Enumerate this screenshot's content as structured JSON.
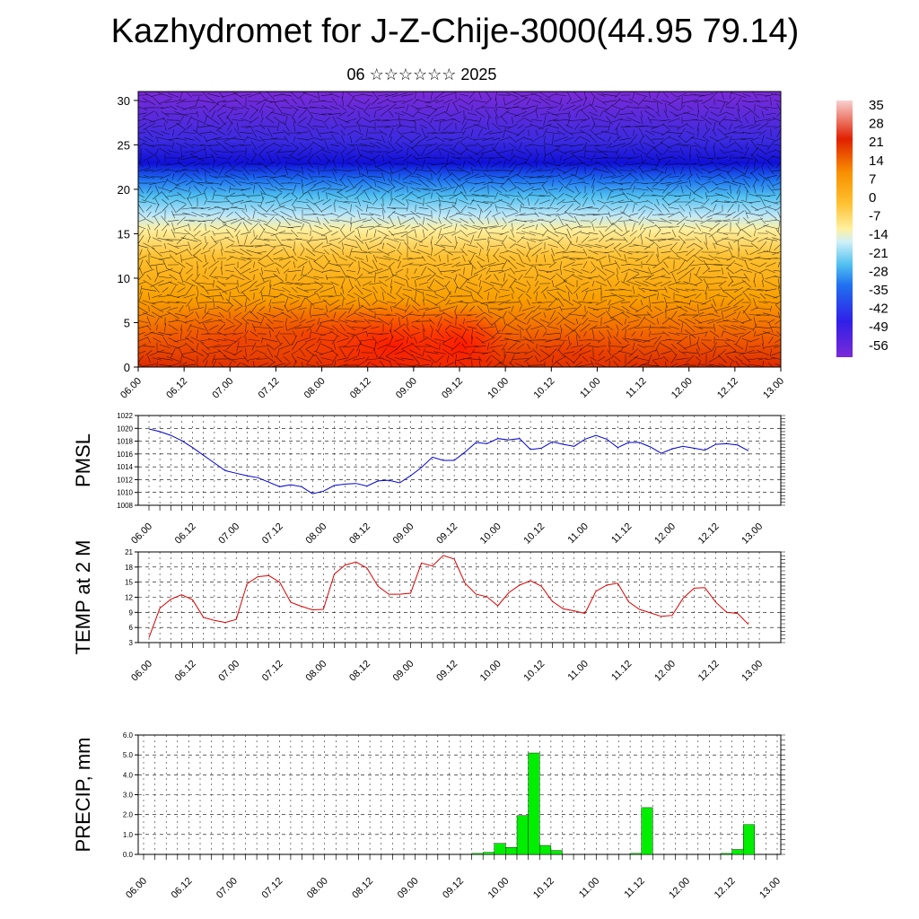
{
  "title": "Kazhydromet for J-Z-Chije-3000(44.95 79.14)",
  "subtitle": "06 ☆☆☆☆☆☆ 2025",
  "time_labels": [
    "06.00",
    "06.12",
    "07.00",
    "07.12",
    "08.00",
    "08.12",
    "09.00",
    "09.12",
    "10.00",
    "10.12",
    "11.00",
    "11.12",
    "12.00",
    "12.12",
    "13.00"
  ],
  "colors": {
    "pmsl_line": "#0000cc",
    "temp_line": "#dd0000",
    "precip_bar": "#00ee00"
  },
  "chart_data": [
    {
      "type": "heatmap",
      "name": "temperature-wind-cross-section",
      "title": "",
      "xlabel": "",
      "ylabel": "",
      "y_ticks": [
        "0",
        "5",
        "10",
        "15",
        "20",
        "25",
        "30"
      ],
      "ylim": [
        0,
        31
      ],
      "colorbar_labels": [
        "35",
        "28",
        "21",
        "14",
        "7",
        "0",
        "-7",
        "-14",
        "-21",
        "-28",
        "-35",
        "-42",
        "-49",
        "-56"
      ],
      "colorbar_range": [
        -60,
        38
      ],
      "overlay": "wind barbs"
    },
    {
      "type": "line",
      "name": "pmsl",
      "ylabel": "PMSL",
      "ylim": [
        1008,
        1022
      ],
      "y_ticks": [
        "1008",
        "1010",
        "1012",
        "1014",
        "1016",
        "1018",
        "1020",
        "1022"
      ],
      "x_hours": [
        0,
        3,
        6,
        9,
        12,
        15,
        18,
        21,
        24,
        27,
        30,
        33,
        36,
        39,
        42,
        45,
        48,
        51,
        54,
        57,
        60,
        63,
        66,
        69,
        72,
        75,
        78,
        81,
        84,
        87,
        90,
        93,
        96,
        99,
        102,
        105,
        108,
        111,
        114,
        117,
        120,
        123,
        126,
        129,
        132,
        135,
        138,
        141,
        144,
        147,
        150,
        153,
        156,
        159,
        162,
        165
      ],
      "values": [
        1019.9,
        1019.5,
        1018.9,
        1018.1,
        1017.0,
        1015.8,
        1014.6,
        1013.4,
        1013.0,
        1012.6,
        1012.3,
        1011.6,
        1010.9,
        1011.2,
        1010.9,
        1009.8,
        1010.2,
        1011.1,
        1011.3,
        1011.4,
        1011.0,
        1011.8,
        1011.9,
        1011.5,
        1012.6,
        1013.9,
        1015.5,
        1015.0,
        1015.0,
        1016.3,
        1017.8,
        1017.6,
        1018.4,
        1018.2,
        1018.4,
        1016.7,
        1016.9,
        1017.9,
        1017.5,
        1017.2,
        1018.3,
        1018.9,
        1018.3,
        1017.0,
        1017.8,
        1017.8,
        1017.1,
        1016.1,
        1016.8,
        1017.2,
        1016.9,
        1016.6,
        1017.5,
        1017.6,
        1017.4,
        1016.5
      ]
    },
    {
      "type": "line",
      "name": "temp-2m",
      "ylabel": "TEMP at 2 M",
      "ylim": [
        3,
        21
      ],
      "y_ticks": [
        "3",
        "6",
        "9",
        "12",
        "15",
        "18",
        "21"
      ],
      "x_hours": [
        0,
        3,
        6,
        9,
        12,
        15,
        18,
        21,
        24,
        27,
        30,
        33,
        36,
        39,
        42,
        45,
        48,
        51,
        54,
        57,
        60,
        63,
        66,
        69,
        72,
        75,
        78,
        81,
        84,
        87,
        90,
        93,
        96,
        99,
        102,
        105,
        108,
        111,
        114,
        117,
        120,
        123,
        126,
        129,
        132,
        135,
        138,
        141,
        144,
        147,
        150,
        153,
        156,
        159,
        162,
        165
      ],
      "values": [
        4.0,
        9.8,
        11.6,
        12.5,
        11.5,
        8.0,
        7.4,
        7.0,
        7.6,
        14.7,
        16.1,
        16.3,
        15.0,
        11.0,
        10.2,
        9.5,
        9.6,
        16.6,
        18.4,
        19.0,
        17.8,
        14.2,
        12.6,
        12.6,
        12.8,
        18.8,
        18.2,
        20.3,
        19.6,
        14.8,
        12.6,
        12.1,
        10.3,
        12.9,
        14.4,
        15.3,
        14.2,
        11.2,
        9.7,
        9.3,
        8.8,
        13.2,
        14.4,
        14.8,
        11.1,
        9.6,
        8.9,
        8.2,
        8.4,
        11.8,
        13.8,
        13.9,
        11.0,
        9.0,
        8.8,
        6.6
      ]
    },
    {
      "type": "bar",
      "name": "precipitation",
      "ylabel": "PRECIP, mm",
      "ylim": [
        0,
        6
      ],
      "y_ticks": [
        "0.0",
        "1.0",
        "2.0",
        "3.0",
        "4.0",
        "5.0",
        "6.0"
      ],
      "bars": [
        {
          "start_hour": 87,
          "value": 0.05
        },
        {
          "start_hour": 90,
          "value": 0.1
        },
        {
          "start_hour": 93,
          "value": 0.55
        },
        {
          "start_hour": 96,
          "value": 0.35
        },
        {
          "start_hour": 99,
          "value": 1.95
        },
        {
          "start_hour": 102,
          "value": 5.1
        },
        {
          "start_hour": 105,
          "value": 0.45
        },
        {
          "start_hour": 108,
          "value": 0.2
        },
        {
          "start_hour": 129,
          "value": 0.05
        },
        {
          "start_hour": 132,
          "value": 2.35
        },
        {
          "start_hour": 153,
          "value": 0.05
        },
        {
          "start_hour": 156,
          "value": 0.25
        },
        {
          "start_hour": 159,
          "value": 1.5
        }
      ]
    }
  ]
}
